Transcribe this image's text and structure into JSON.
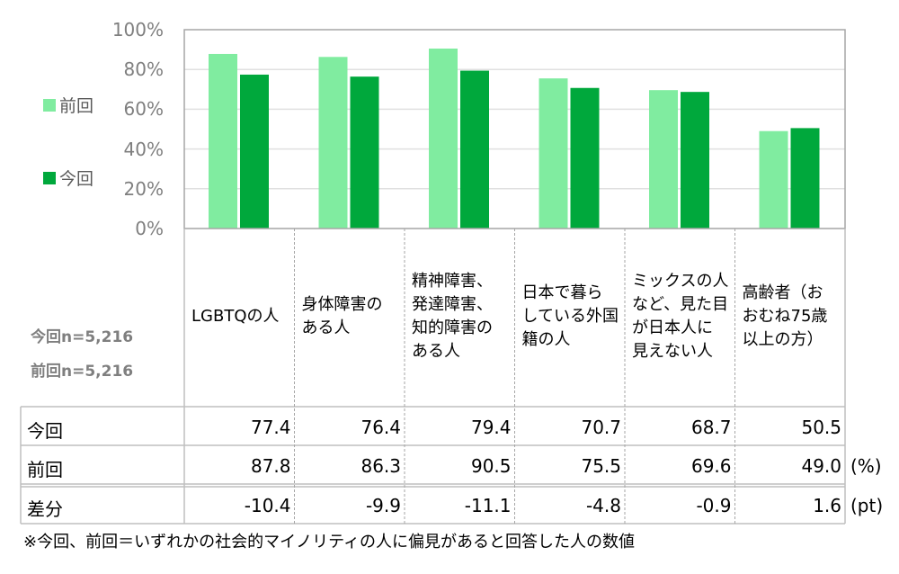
{
  "chart_data": {
    "type": "bar",
    "categories": [
      "LGBTQの人",
      "身体障害の\nある人",
      "精神障害、\n発達障害、\n知的障害の\nある人",
      "日本で暮ら\nしている外国\n籍の人",
      "ミックスの人\nなど、見た目\nが日本人に\n見えない人",
      "高齢者（お\nおむね75歳\n以上の方）"
    ],
    "series": [
      {
        "name": "前回",
        "color": "#80ECA0",
        "values": [
          87.8,
          86.3,
          90.5,
          75.5,
          69.6,
          49.0
        ]
      },
      {
        "name": "今回",
        "color": "#00A83C",
        "values": [
          77.4,
          76.4,
          79.4,
          70.7,
          68.7,
          50.5
        ]
      }
    ],
    "yticks": [
      "0%",
      "20%",
      "40%",
      "60%",
      "80%",
      "100%"
    ],
    "ylim": [
      0,
      100
    ],
    "grid": true,
    "legend": "left"
  },
  "sample": {
    "current": "今回n=5,216",
    "previous": "前回n=5,216"
  },
  "table": {
    "rows": [
      {
        "label": "今回",
        "values": [
          "77.4",
          "76.4",
          "79.4",
          "70.7",
          "68.7",
          "50.5"
        ],
        "unit": ""
      },
      {
        "label": "前回",
        "values": [
          "87.8",
          "86.3",
          "90.5",
          "75.5",
          "69.6",
          "49.0"
        ],
        "unit": "(%)"
      },
      {
        "label": "差分",
        "values": [
          "-10.4",
          "-9.9",
          "-11.1",
          "-4.8",
          "-0.9",
          "1.6"
        ],
        "unit": "(pt)"
      }
    ]
  },
  "footnote": "※今回、前回＝いずれかの社会的マイノリティの人に偏見があると回答した人の数値"
}
